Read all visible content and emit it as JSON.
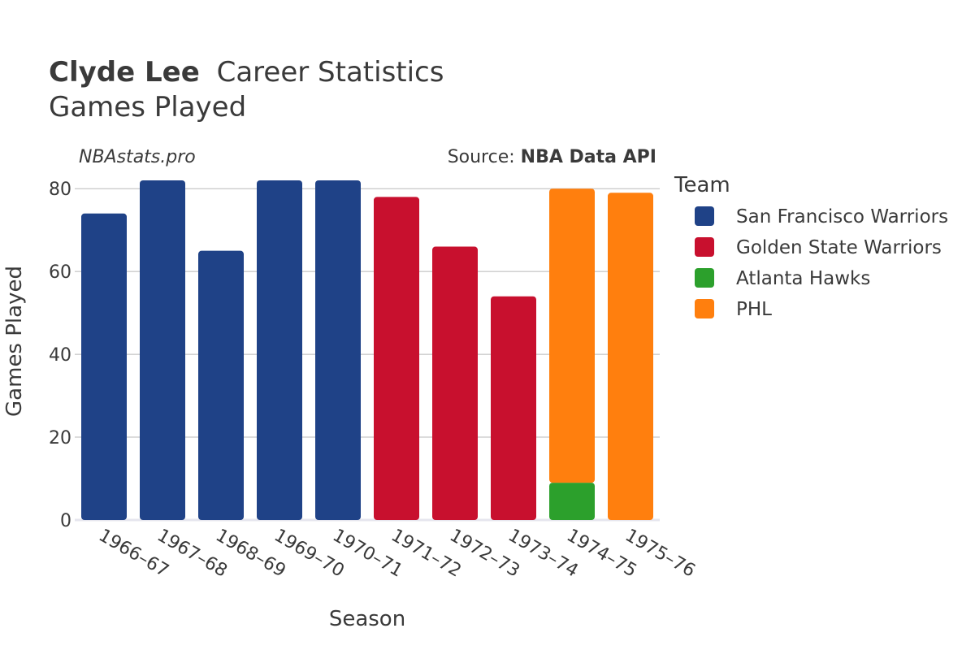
{
  "header": {
    "player": "Clyde Lee",
    "title_rest": "Career Statistics",
    "subtitle": "Games Played",
    "watermark": "NBAstats.pro",
    "source_prefix": "Source: ",
    "source_name": "NBA Data API"
  },
  "chart_data": {
    "type": "bar",
    "stacked": true,
    "xlabel": "Season",
    "ylabel": "Games Played",
    "ylim": [
      0,
      82
    ],
    "yticks": [
      0,
      20,
      40,
      60,
      80
    ],
    "grid": true,
    "legend_title": "Team",
    "legend_position": "right",
    "categories": [
      "1966–67",
      "1967–68",
      "1968–69",
      "1969–70",
      "1970–71",
      "1971–72",
      "1972–73",
      "1973–74",
      "1974–75",
      "1975–76"
    ],
    "series": [
      {
        "name": "San Francisco Warriors",
        "color": "#1f4287",
        "values": [
          74,
          82,
          65,
          82,
          82,
          0,
          0,
          0,
          0,
          0
        ]
      },
      {
        "name": "Golden State Warriors",
        "color": "#c8102e",
        "values": [
          0,
          0,
          0,
          0,
          0,
          78,
          66,
          54,
          0,
          0
        ]
      },
      {
        "name": "Atlanta Hawks",
        "color": "#2ca02c",
        "values": [
          0,
          0,
          0,
          0,
          0,
          0,
          0,
          0,
          9,
          0
        ]
      },
      {
        "name": "PHL",
        "color": "#ff7f0e",
        "values": [
          0,
          0,
          0,
          0,
          0,
          0,
          0,
          0,
          71,
          79
        ]
      }
    ]
  }
}
